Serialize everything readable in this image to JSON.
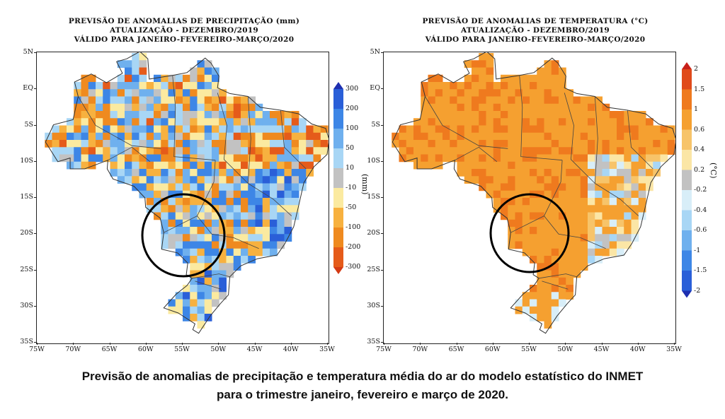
{
  "maps": [
    {
      "title_lines": [
        "PREVISÃO DE ANOMALIAS DE PRECIPITAÇÃO (mm)",
        "ATUALIZAÇÃO - DEZEMBRO/2019",
        "VÁLIDO PARA JANEIRO-FEVEREIRO-MARÇO/2020"
      ],
      "variable": "precipitation",
      "unit": "(mm)",
      "colorbar_labels": [
        "300",
        "200",
        "100",
        "50",
        "10",
        "-10",
        "-50",
        "-100",
        "-200",
        "-300"
      ],
      "colorbar_colors": [
        "#1e2fb0",
        "#2a5fd8",
        "#3d86e6",
        "#6fb0ee",
        "#a8d6f5",
        "#c2c2c2",
        "#fbeaa0",
        "#f7b13f",
        "#ef8a1f",
        "#e55b1a",
        "#d43a14"
      ],
      "dominant_pattern": "mixed blue and orange"
    },
    {
      "title_lines": [
        "PREVISÃO DE ANOMALIAS DE TEMPERATURA (°C)",
        "ATUALIZAÇÃO - DEZEMBRO/2019",
        "VÁLIDO PARA JANEIRO-FEVEREIRO-MARÇO/2020"
      ],
      "variable": "temperature",
      "unit": "(°C)",
      "colorbar_labels": [
        "2",
        "1.5",
        "1",
        "0.6",
        "0.4",
        "0.2",
        "-0.2",
        "-0.4",
        "-0.6",
        "-1",
        "-1.5",
        "-2"
      ],
      "colorbar_colors": [
        "#c8201a",
        "#e04a1a",
        "#ef7a1e",
        "#f5a030",
        "#f7c46a",
        "#fbe6a6",
        "#c2c2c2",
        "#d8eef8",
        "#a8d6f5",
        "#6fb0ee",
        "#3d86e6",
        "#2a5fd8",
        "#1e2fb0"
      ],
      "dominant_pattern": "mostly orange"
    }
  ],
  "lat_labels": [
    "5N",
    "EQ",
    "5S",
    "10S",
    "15S",
    "20S",
    "25S",
    "30S",
    "35S"
  ],
  "lon_labels": [
    "75W",
    "70W",
    "65W",
    "60W",
    "55W",
    "50W",
    "45W",
    "40W",
    "35W"
  ],
  "highlight": "circle around Mato Grosso do Sul region",
  "caption_lines": [
    "Previsão de anomalias de precipitação e temperatura média do ar do modelo estatístico do INMET",
    "para o trimestre janeiro, fevereiro e março de 2020."
  ]
}
